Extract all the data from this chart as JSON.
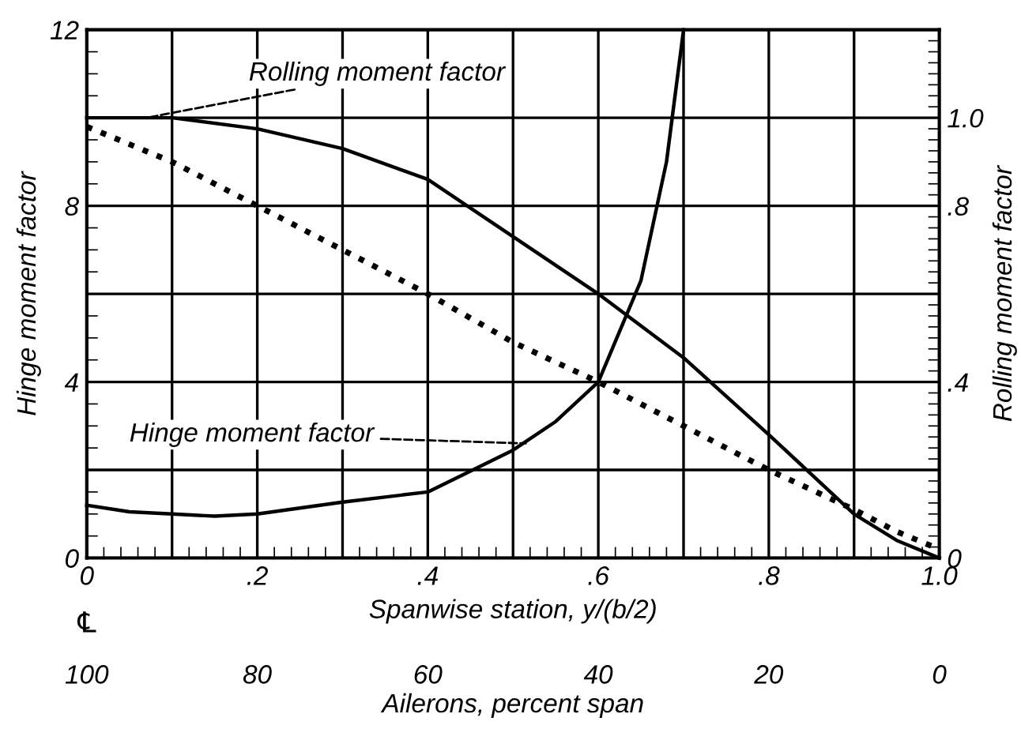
{
  "chart_data": {
    "type": "line",
    "xlabel": "Spanwise station, y/(b/2)",
    "ylabel": "Hinge moment factor",
    "y2label": "Rolling moment factor",
    "x2label": "Ailerons, percent span",
    "xlim": [
      0,
      1.0
    ],
    "ylim": [
      0,
      12
    ],
    "y2lim": [
      0,
      1.2
    ],
    "x2lim": [
      100,
      0
    ],
    "xticks": [
      0,
      {
        "value": 0.1,
        "label": null
      },
      {
        "value": 0.2,
        "label": ".2"
      },
      {
        "value": 0.3,
        "label": null
      },
      {
        "value": 0.4,
        "label": ".4"
      },
      {
        "value": 0.5,
        "label": null
      },
      {
        "value": 0.6,
        "label": ".6"
      },
      {
        "value": 0.7,
        "label": null
      },
      {
        "value": 0.8,
        "label": ".8"
      },
      {
        "value": 0.9,
        "label": null
      },
      {
        "value": 1.0,
        "label": "1.0"
      }
    ],
    "yticks": [
      0,
      {
        "value": 2,
        "label": null
      },
      4,
      {
        "value": 6,
        "label": null
      },
      8,
      {
        "value": 10,
        "label": null
      },
      12
    ],
    "y2ticks": [
      0,
      {
        "value": 0.4,
        "label": ".4"
      },
      {
        "value": 0.8,
        "label": ".8"
      },
      {
        "value": 1.0,
        "label": "1.0"
      }
    ],
    "x2ticks": [
      100,
      80,
      60,
      40,
      20,
      0
    ],
    "grid": true,
    "marker": "none",
    "series": [
      {
        "color": "#000000",
        "line_style": "solid",
        "x": [
          0,
          0.05,
          0.1,
          0.15,
          0.2,
          0.3,
          0.4,
          0.5,
          0.55,
          0.6,
          0.65,
          0.68,
          0.7
        ],
        "values": [
          1.2,
          1.05,
          1.0,
          0.95,
          1.0,
          1.27,
          1.5,
          2.45,
          3.1,
          4.0,
          6.3,
          9.0,
          12.0
        ]
      },
      {
        "color": "#000000",
        "line_style": "solid",
        "axis": "y2",
        "x": [
          0,
          0.1,
          0.2,
          0.3,
          0.4,
          0.5,
          0.6,
          0.7,
          0.8,
          0.85,
          0.9,
          0.95,
          1.0
        ],
        "values": [
          1.0,
          1.0,
          0.975,
          0.93,
          0.86,
          0.73,
          0.6,
          0.455,
          0.28,
          0.19,
          0.1,
          0.04,
          0
        ]
      },
      {
        "color": "#000000",
        "line_style": "dotted",
        "axis": "y2",
        "x": [
          0,
          0.1,
          0.2,
          0.3,
          0.4,
          0.5,
          0.6,
          0.7,
          0.8,
          0.9,
          0.95,
          1.0
        ],
        "values": [
          0.98,
          0.9,
          0.8,
          0.7,
          0.6,
          0.49,
          0.4,
          0.3,
          0.2,
          0.11,
          0.06,
          0.02
        ]
      }
    ],
    "annotations": [
      {
        "text": "Rolling moment factor",
        "x": 0.07,
        "y": 10
      },
      {
        "text": "Hinge moment factor",
        "x": 0.52,
        "y": 2.6
      },
      "℄"
    ]
  }
}
